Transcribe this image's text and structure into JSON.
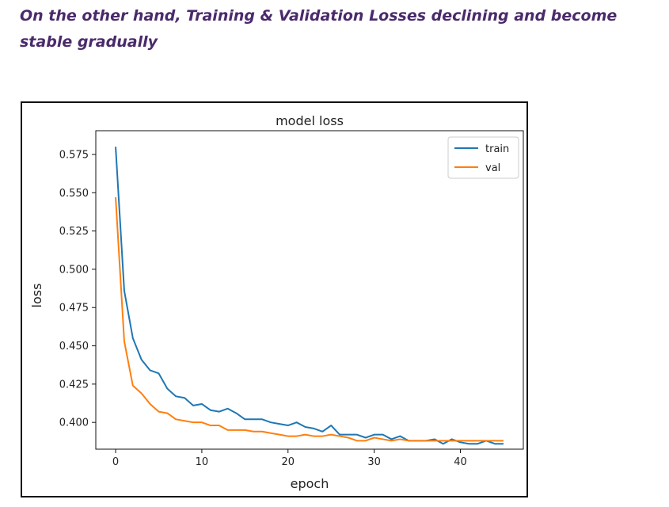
{
  "heading": "On the other hand, Training & Validation Losses declining and become stable gradually",
  "chart_data": {
    "type": "line",
    "title": "model loss",
    "xlabel": "epoch",
    "ylabel": "loss",
    "xlim": [
      -2.3,
      47.3
    ],
    "ylim": [
      0.3825,
      0.5905
    ],
    "xticks": [
      0,
      10,
      20,
      30,
      40
    ],
    "yticks": [
      0.4,
      0.425,
      0.45,
      0.475,
      0.5,
      0.525,
      0.55,
      0.575
    ],
    "legend": "top-right",
    "grid": false,
    "x": [
      0,
      1,
      2,
      3,
      4,
      5,
      6,
      7,
      8,
      9,
      10,
      11,
      12,
      13,
      14,
      15,
      16,
      17,
      18,
      19,
      20,
      21,
      22,
      23,
      24,
      25,
      26,
      27,
      28,
      29,
      30,
      31,
      32,
      33,
      34,
      35,
      36,
      37,
      38,
      39,
      40,
      41,
      42,
      43,
      44,
      45
    ],
    "series": [
      {
        "name": "train",
        "color": "#1f77b4",
        "values": [
          0.58,
          0.486,
          0.455,
          0.441,
          0.434,
          0.432,
          0.422,
          0.417,
          0.416,
          0.411,
          0.412,
          0.408,
          0.407,
          0.409,
          0.406,
          0.402,
          0.402,
          0.402,
          0.4,
          0.399,
          0.398,
          0.4,
          0.397,
          0.396,
          0.394,
          0.398,
          0.392,
          0.392,
          0.392,
          0.39,
          0.392,
          0.392,
          0.389,
          0.391,
          0.388,
          0.388,
          0.388,
          0.389,
          0.386,
          0.389,
          0.387,
          0.386,
          0.386,
          0.388,
          0.386,
          0.386
        ]
      },
      {
        "name": "val",
        "color": "#ff7f0e",
        "values": [
          0.547,
          0.453,
          0.424,
          0.419,
          0.412,
          0.407,
          0.406,
          0.402,
          0.401,
          0.4,
          0.4,
          0.398,
          0.398,
          0.395,
          0.395,
          0.395,
          0.394,
          0.394,
          0.393,
          0.392,
          0.391,
          0.391,
          0.392,
          0.391,
          0.391,
          0.392,
          0.391,
          0.39,
          0.388,
          0.388,
          0.39,
          0.389,
          0.388,
          0.389,
          0.388,
          0.388,
          0.388,
          0.388,
          0.388,
          0.388,
          0.388,
          0.388,
          0.388,
          0.388,
          0.388,
          0.388
        ]
      }
    ]
  }
}
